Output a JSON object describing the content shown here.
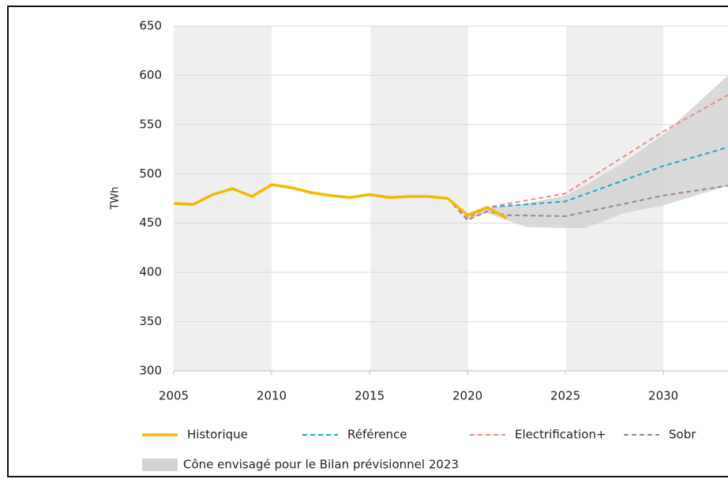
{
  "chart_data": {
    "type": "line",
    "ylabel": "TWh",
    "xlim": [
      2005,
      2033.3
    ],
    "xticks": [
      2005,
      2010,
      2015,
      2020,
      2025,
      2030
    ],
    "ylim": [
      300,
      650
    ],
    "yticks": [
      300,
      350,
      400,
      450,
      500,
      550,
      600,
      650
    ],
    "grid": true,
    "band": {
      "name": "Cône envisagé pour le Bilan prévisionnel 2023",
      "color": "#d3d3d3",
      "x": [
        2020,
        2021,
        2023,
        2025,
        2026,
        2028,
        2030,
        2033.3
      ],
      "lower": [
        454,
        460,
        446,
        445,
        445,
        460,
        468,
        488
      ],
      "upper": [
        456,
        465,
        470,
        478,
        488,
        512,
        540,
        600
      ]
    },
    "series": [
      {
        "name": "Historique",
        "color": "#f5b800",
        "dashed": false,
        "x": [
          2005,
          2006,
          2007,
          2008,
          2009,
          2010,
          2011,
          2012,
          2013,
          2014,
          2015,
          2016,
          2017,
          2018,
          2019,
          2020,
          2021,
          2022
        ],
        "values": [
          470,
          469,
          479,
          485,
          477,
          489,
          486,
          481,
          478,
          476,
          479,
          476,
          477,
          477,
          475,
          458,
          466,
          455
        ]
      },
      {
        "name": "Référence",
        "color": "#1aa6d9",
        "dashed": true,
        "x": [
          2019,
          2020,
          2021,
          2025,
          2030,
          2033.3
        ],
        "values": [
          475,
          455,
          466,
          472,
          508,
          527
        ]
      },
      {
        "name": "Electrification+",
        "color": "#f08a80",
        "dashed": true,
        "x": [
          2019,
          2020,
          2021,
          2025,
          2030,
          2033.3
        ],
        "values": [
          475,
          455,
          466,
          480,
          543,
          580
        ]
      },
      {
        "name": "Sobr",
        "color": "#a08090",
        "dashed": true,
        "x": [
          2019,
          2020,
          2021,
          2022,
          2025,
          2030,
          2033.3
        ],
        "values": [
          475,
          453,
          462,
          458,
          457,
          478,
          488
        ]
      }
    ]
  }
}
